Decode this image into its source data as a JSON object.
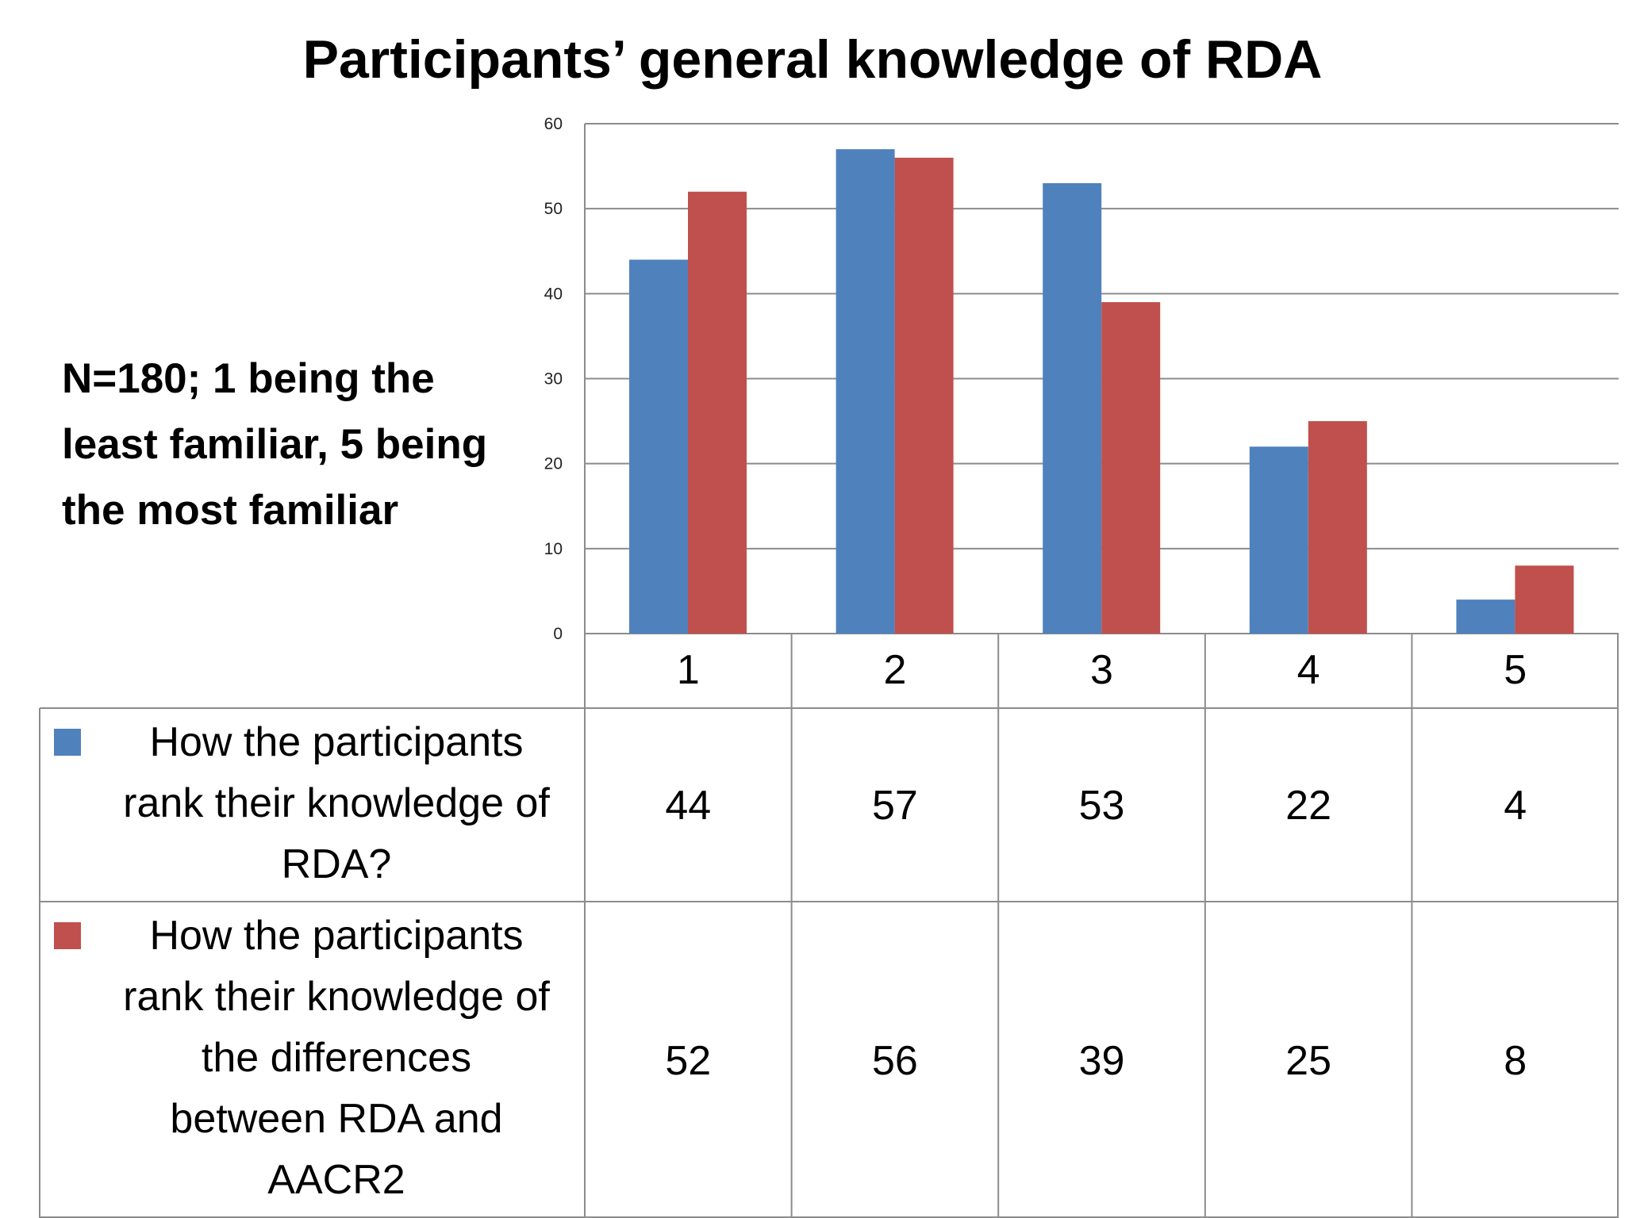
{
  "title": "Participants’ general knowledge of RDA",
  "side_note": "N=180; 1 being the least familiar, 5 being the most familiar",
  "colors": {
    "series_1": "#4F81BD",
    "series_2": "#C0504D",
    "grid": "#8c8c8c",
    "table_border": "#8c8c8c"
  },
  "chart_data": {
    "type": "bar",
    "title": "Participants’ general knowledge of RDA",
    "categories": [
      "1",
      "2",
      "3",
      "4",
      "5"
    ],
    "series": [
      {
        "name": "How the participants rank their knowledge of RDA?",
        "values": [
          44,
          57,
          53,
          22,
          4
        ]
      },
      {
        "name": "How the participants rank their knowledge of the differences between RDA and AACR2",
        "values": [
          52,
          56,
          39,
          25,
          8
        ]
      }
    ],
    "yticks": [
      "0",
      "10",
      "20",
      "30",
      "40",
      "50",
      "60"
    ],
    "ylim": [
      0,
      60
    ],
    "grid": true,
    "legend": "data table below chart",
    "data_table": true
  }
}
